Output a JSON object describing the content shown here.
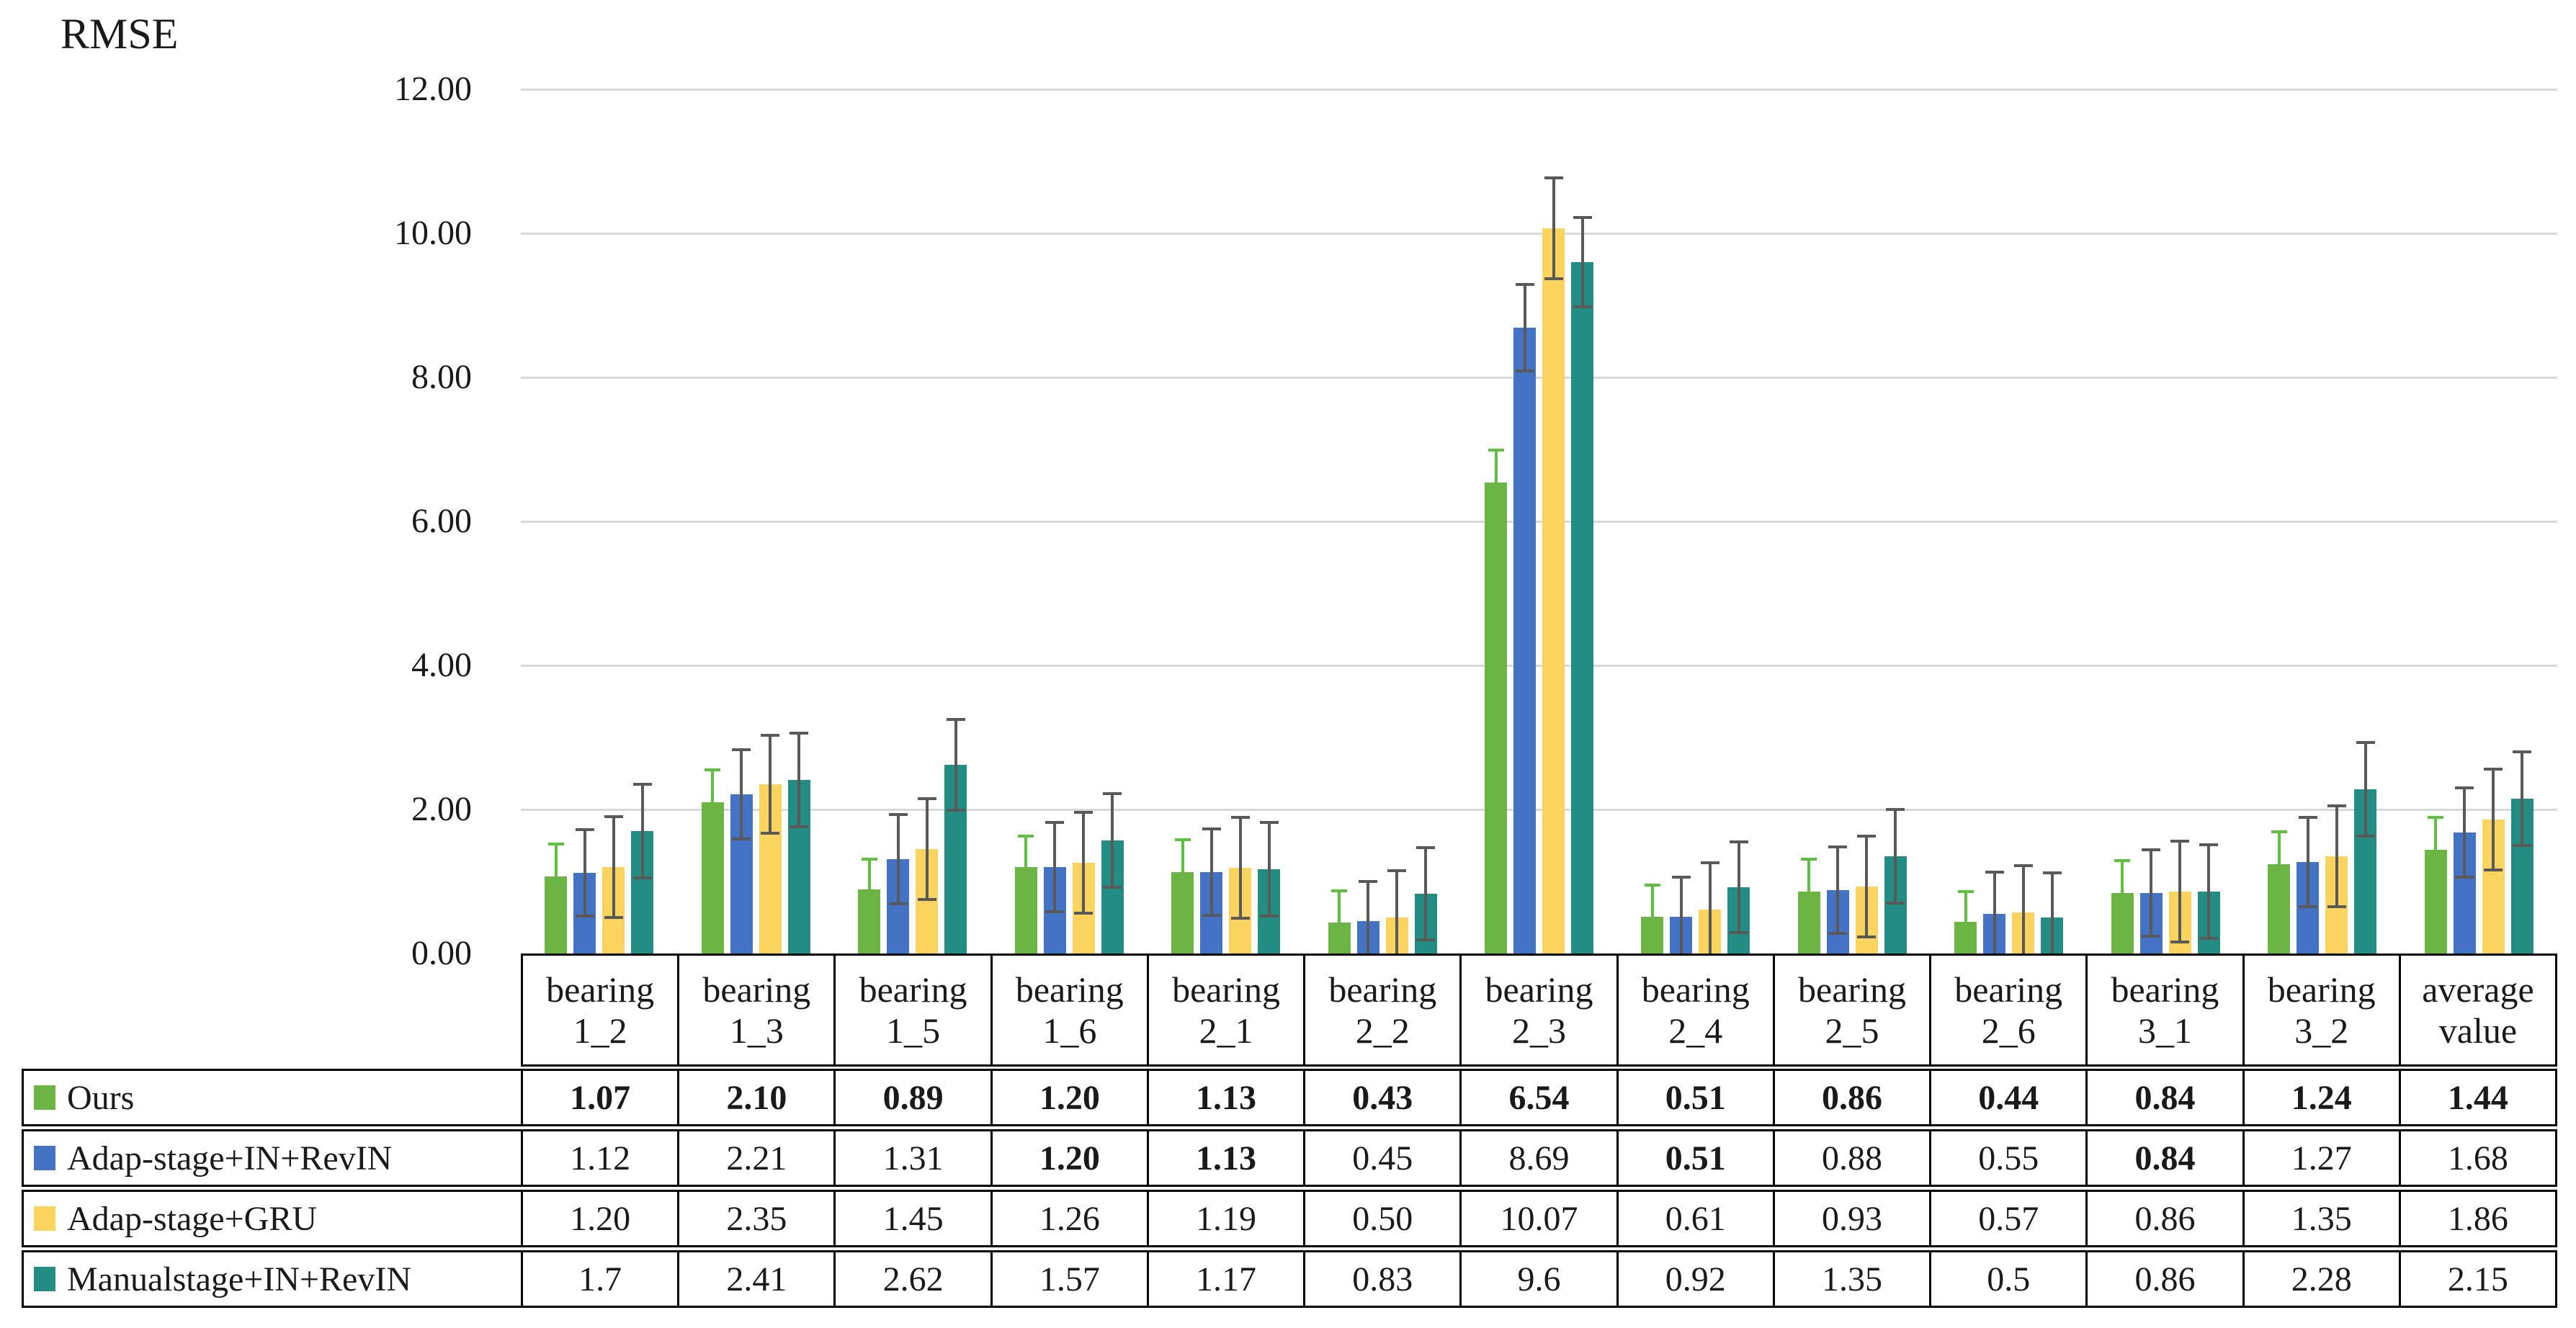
{
  "chart_data": {
    "type": "bar",
    "title": "RMSE",
    "y_axis": {
      "min": 0,
      "max": 12,
      "step": 2,
      "tick_labels": [
        "0.00",
        "2.00",
        "4.00",
        "6.00",
        "8.00",
        "10.00",
        "12.00"
      ],
      "grid": true
    },
    "grid_color": "#d9d9d9",
    "border_color": "#000000",
    "text_color": "#1a1a1a",
    "background": "#ffffff",
    "legend_position": "table-left-column",
    "categories": [
      {
        "line1": "bearing",
        "line2": "1_2"
      },
      {
        "line1": "bearing",
        "line2": "1_3"
      },
      {
        "line1": "bearing",
        "line2": "1_5"
      },
      {
        "line1": "bearing",
        "line2": "1_6"
      },
      {
        "line1": "bearing",
        "line2": "2_1"
      },
      {
        "line1": "bearing",
        "line2": "2_2"
      },
      {
        "line1": "bearing",
        "line2": "2_3"
      },
      {
        "line1": "bearing",
        "line2": "2_4"
      },
      {
        "line1": "bearing",
        "line2": "2_5"
      },
      {
        "line1": "bearing",
        "line2": "2_6"
      },
      {
        "line1": "bearing",
        "line2": "3_1"
      },
      {
        "line1": "bearing",
        "line2": "3_2"
      },
      {
        "line1": "average",
        "line2": "value"
      }
    ],
    "series": [
      {
        "name": "Ours",
        "color": "#6CB544",
        "error_color": "#5FBF3F",
        "error_mode": "plus",
        "display": [
          "1.07",
          "2.10",
          "0.89",
          "1.20",
          "1.13",
          "0.43",
          "6.54",
          "0.51",
          "0.86",
          "0.44",
          "0.84",
          "1.24",
          "1.44"
        ],
        "errors": [
          0.45,
          0.45,
          0.42,
          0.43,
          0.45,
          0.44,
          0.45,
          0.44,
          0.45,
          0.42,
          0.45,
          0.45,
          0.45
        ],
        "bold": [
          true,
          true,
          true,
          true,
          true,
          true,
          true,
          true,
          true,
          true,
          true,
          true,
          true
        ]
      },
      {
        "name": "Adap-stage+IN+RevIN",
        "color": "#4472C4",
        "error_color": "#595959",
        "error_mode": "both",
        "display": [
          "1.12",
          "2.21",
          "1.31",
          "1.20",
          "1.13",
          "0.45",
          "8.69",
          "0.51",
          "0.88",
          "0.55",
          "0.84",
          "1.27",
          "1.68"
        ],
        "errors": [
          0.6,
          0.62,
          0.62,
          0.62,
          0.6,
          0.55,
          0.6,
          0.55,
          0.6,
          0.58,
          0.6,
          0.62,
          0.62
        ],
        "bold": [
          false,
          false,
          false,
          true,
          true,
          false,
          false,
          true,
          false,
          false,
          true,
          false,
          false
        ]
      },
      {
        "name": "Adap-stage+GRU",
        "color": "#FBD45F",
        "error_color": "#595959",
        "error_mode": "both",
        "display": [
          "1.20",
          "2.35",
          "1.45",
          "1.26",
          "1.19",
          "0.50",
          "10.07",
          "0.61",
          "0.93",
          "0.57",
          "0.86",
          "1.35",
          "1.86"
        ],
        "errors": [
          0.7,
          0.68,
          0.7,
          0.7,
          0.7,
          0.65,
          0.7,
          0.65,
          0.7,
          0.65,
          0.7,
          0.7,
          0.7
        ],
        "bold": [
          false,
          false,
          false,
          false,
          false,
          false,
          false,
          false,
          false,
          false,
          false,
          false,
          false
        ]
      },
      {
        "name": "Manualstage+IN+RevIN",
        "color": "#238D83",
        "error_color": "#595959",
        "error_mode": "both",
        "display": [
          "1.7",
          "2.41",
          "2.62",
          "1.57",
          "1.17",
          "0.83",
          "9.6",
          "0.92",
          "1.35",
          "0.5",
          "0.86",
          "2.28",
          "2.15"
        ],
        "errors": [
          0.65,
          0.65,
          0.63,
          0.65,
          0.65,
          0.64,
          0.62,
          0.63,
          0.65,
          0.62,
          0.65,
          0.65,
          0.65
        ],
        "bold": [
          false,
          false,
          false,
          false,
          false,
          false,
          false,
          false,
          false,
          false,
          false,
          false,
          false
        ]
      }
    ]
  }
}
